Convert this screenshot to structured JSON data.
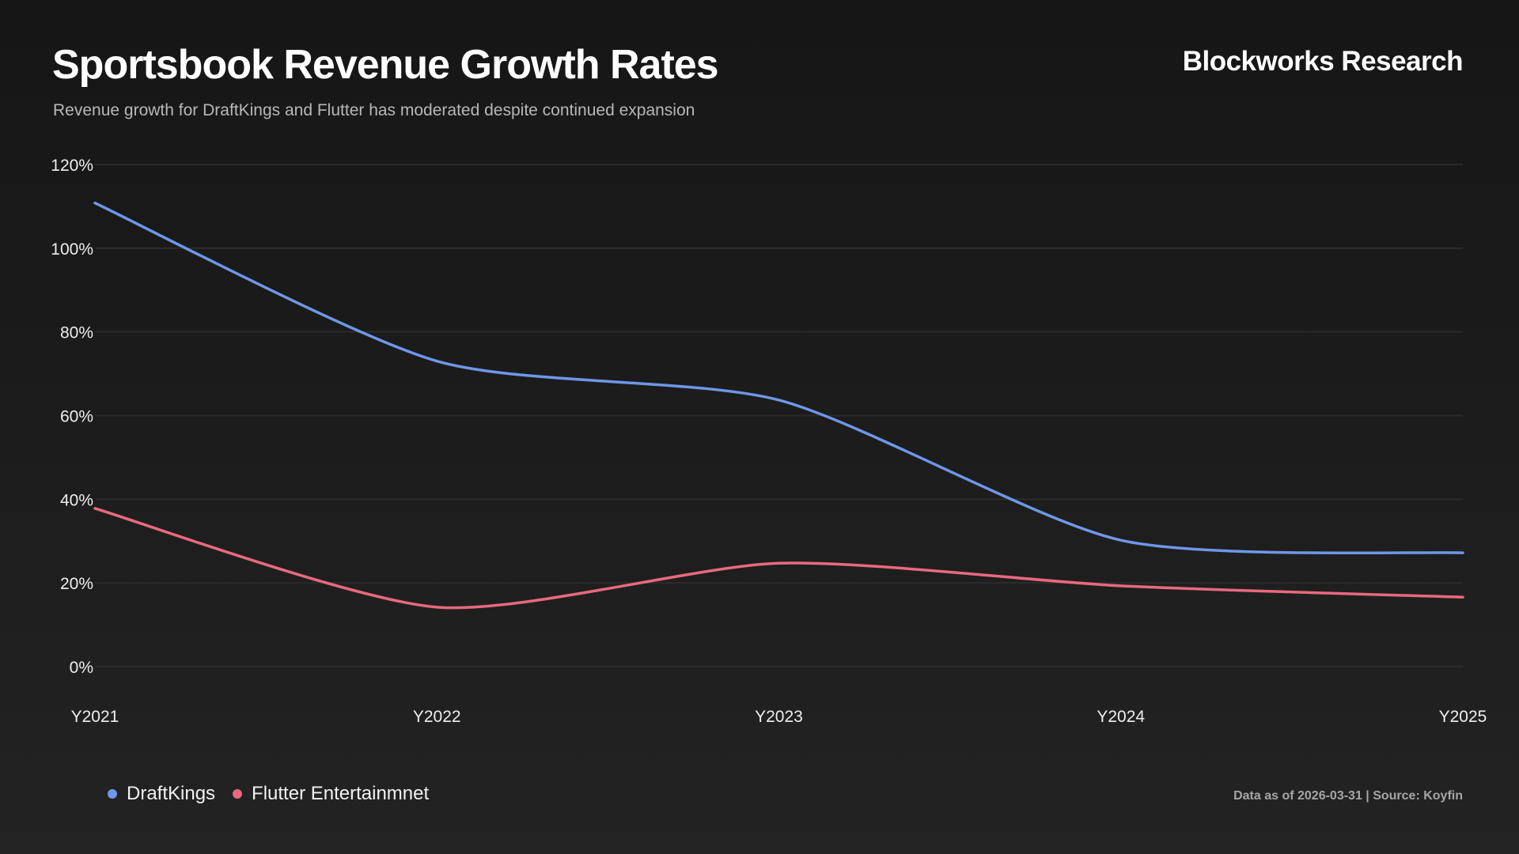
{
  "header": {
    "title": "Sportsbook Revenue Growth Rates",
    "subtitle": "Revenue growth for DraftKings and Flutter has moderated despite continued expansion",
    "brand": "Blockworks Research"
  },
  "footer": {
    "note": "Data as of 2026-03-31 | Source: Koyfin"
  },
  "chart_data": {
    "type": "line",
    "title": "Sportsbook Revenue Growth Rates",
    "categories": [
      "Y2021",
      "Y2022",
      "Y2023",
      "Y2024",
      "Y2025"
    ],
    "ylim": [
      0,
      120
    ],
    "yticks": [
      0,
      20,
      40,
      60,
      80,
      100,
      120
    ],
    "ytick_labels": [
      "0%",
      "20%",
      "40%",
      "60%",
      "80%",
      "100%",
      "120%"
    ],
    "grid": true,
    "legend": "bottom-left",
    "series": [
      {
        "name": "DraftKings",
        "color": "#6f97e8",
        "values": [
          110.8,
          73.0,
          63.7,
          30.2,
          27.2
        ]
      },
      {
        "name": "Flutter Entertainmnet",
        "color": "#e8697f",
        "values": [
          37.8,
          14.2,
          24.7,
          19.3,
          16.6
        ]
      }
    ]
  }
}
